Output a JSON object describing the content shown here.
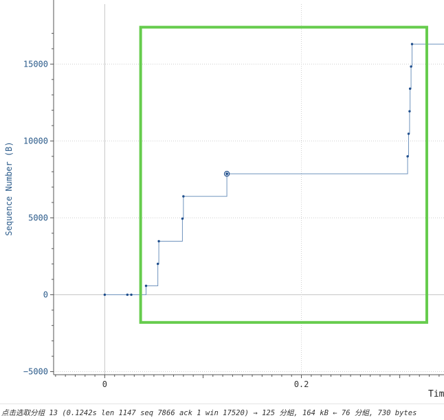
{
  "chart_data": {
    "type": "line",
    "line_style": "step",
    "xlabel": "Tim",
    "ylabel": "Sequence Number (B)",
    "x_ticks": [
      "0",
      "0.2"
    ],
    "y_ticks": [
      "−5000",
      "0",
      "5000",
      "10000",
      "15000"
    ],
    "xlim": [
      -0.052,
      0.345
    ],
    "ylim": [
      -5200,
      18900
    ],
    "grid": true,
    "series": [
      {
        "color": "#3a6fb0",
        "points": [
          [
            0.0,
            0
          ],
          [
            0.023,
            0
          ],
          [
            0.027,
            0
          ],
          [
            0.042,
            580
          ],
          [
            0.054,
            2010
          ],
          [
            0.055,
            3480
          ],
          [
            0.079,
            4950
          ],
          [
            0.08,
            6400
          ],
          [
            0.1242,
            7866
          ],
          [
            0.308,
            9000
          ],
          [
            0.309,
            10470
          ],
          [
            0.31,
            11930
          ],
          [
            0.3105,
            13400
          ],
          [
            0.3115,
            14840
          ],
          [
            0.3125,
            16300
          ]
        ],
        "extends_to": 0.345
      }
    ],
    "highlighted_point": [
      0.1242,
      7866
    ],
    "zoom_box": {
      "x_range": [
        0.0365,
        0.3275
      ],
      "y_range": [
        -1800,
        17400
      ],
      "color": "#66cc4d"
    }
  },
  "status": {
    "text": "点击选取分组 13 (0.1242s len 1147 seq 7866 ack 1 win 17520) → 125 分組, 164 kB ← 76 分組, 730 bytes"
  }
}
